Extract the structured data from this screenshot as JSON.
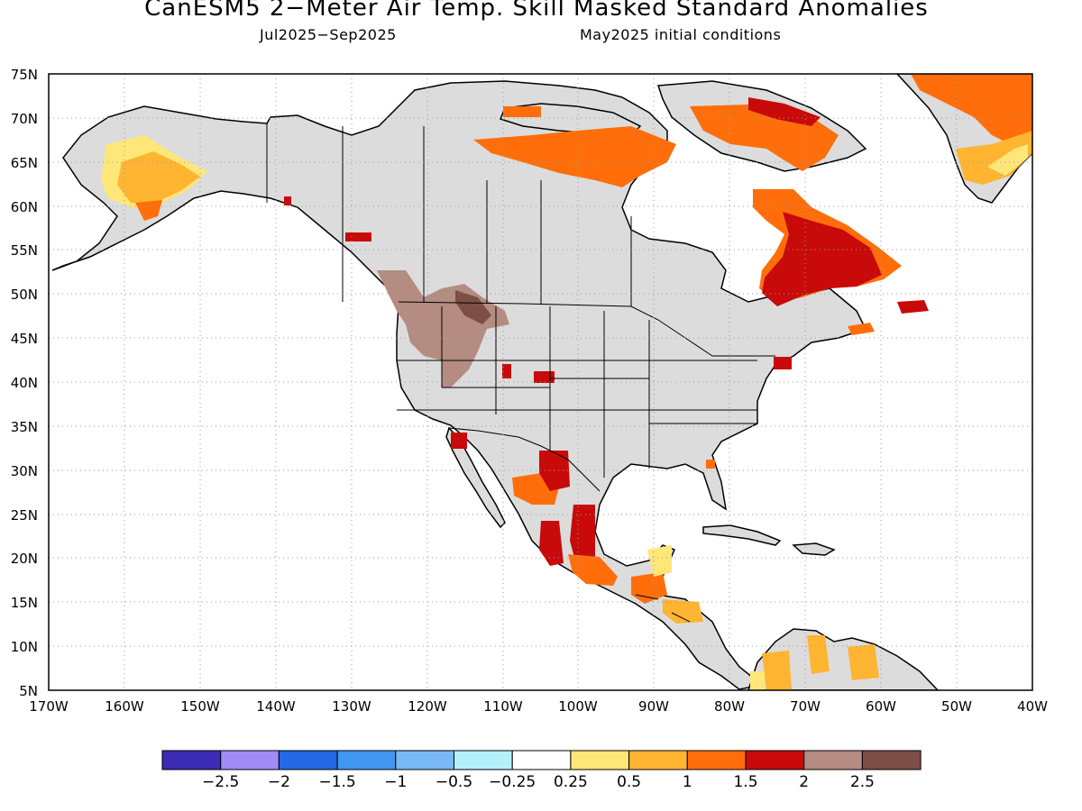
{
  "title": "CanESM5 2−Meter Air Temp. Skill Masked Standard Anomalies",
  "subtitle_left": "Jul2025−Sep2025",
  "subtitle_right": "May2025 initial conditions",
  "lat_labels": [
    "75N",
    "70N",
    "65N",
    "60N",
    "55N",
    "50N",
    "45N",
    "40N",
    "35N",
    "30N",
    "25N",
    "20N",
    "15N",
    "10N",
    "5N"
  ],
  "lon_labels": [
    "170W",
    "160W",
    "150W",
    "140W",
    "130W",
    "120W",
    "110W",
    "100W",
    "90W",
    "80W",
    "70W",
    "60W",
    "50W",
    "40W"
  ],
  "colorbar": {
    "colors": [
      "#3c2bb5",
      "#a08cf5",
      "#2468e6",
      "#4196f0",
      "#78b9f5",
      "#b4f0fa",
      "#ffffff",
      "#ffe678",
      "#ffb432",
      "#ff6e0a",
      "#c80a0a",
      "#b48c82",
      "#7d4e46"
    ],
    "tick_labels": [
      "−2.5",
      "−2",
      "−1.5",
      "−1",
      "−0.5",
      "−0.25",
      "0.25",
      "0.5",
      "1",
      "1.5",
      "2",
      "2.5"
    ]
  },
  "colors": {
    "land_no_skill": "#dcdcdc",
    "coast": "#000000",
    "grid": "#9a9a9a"
  }
}
